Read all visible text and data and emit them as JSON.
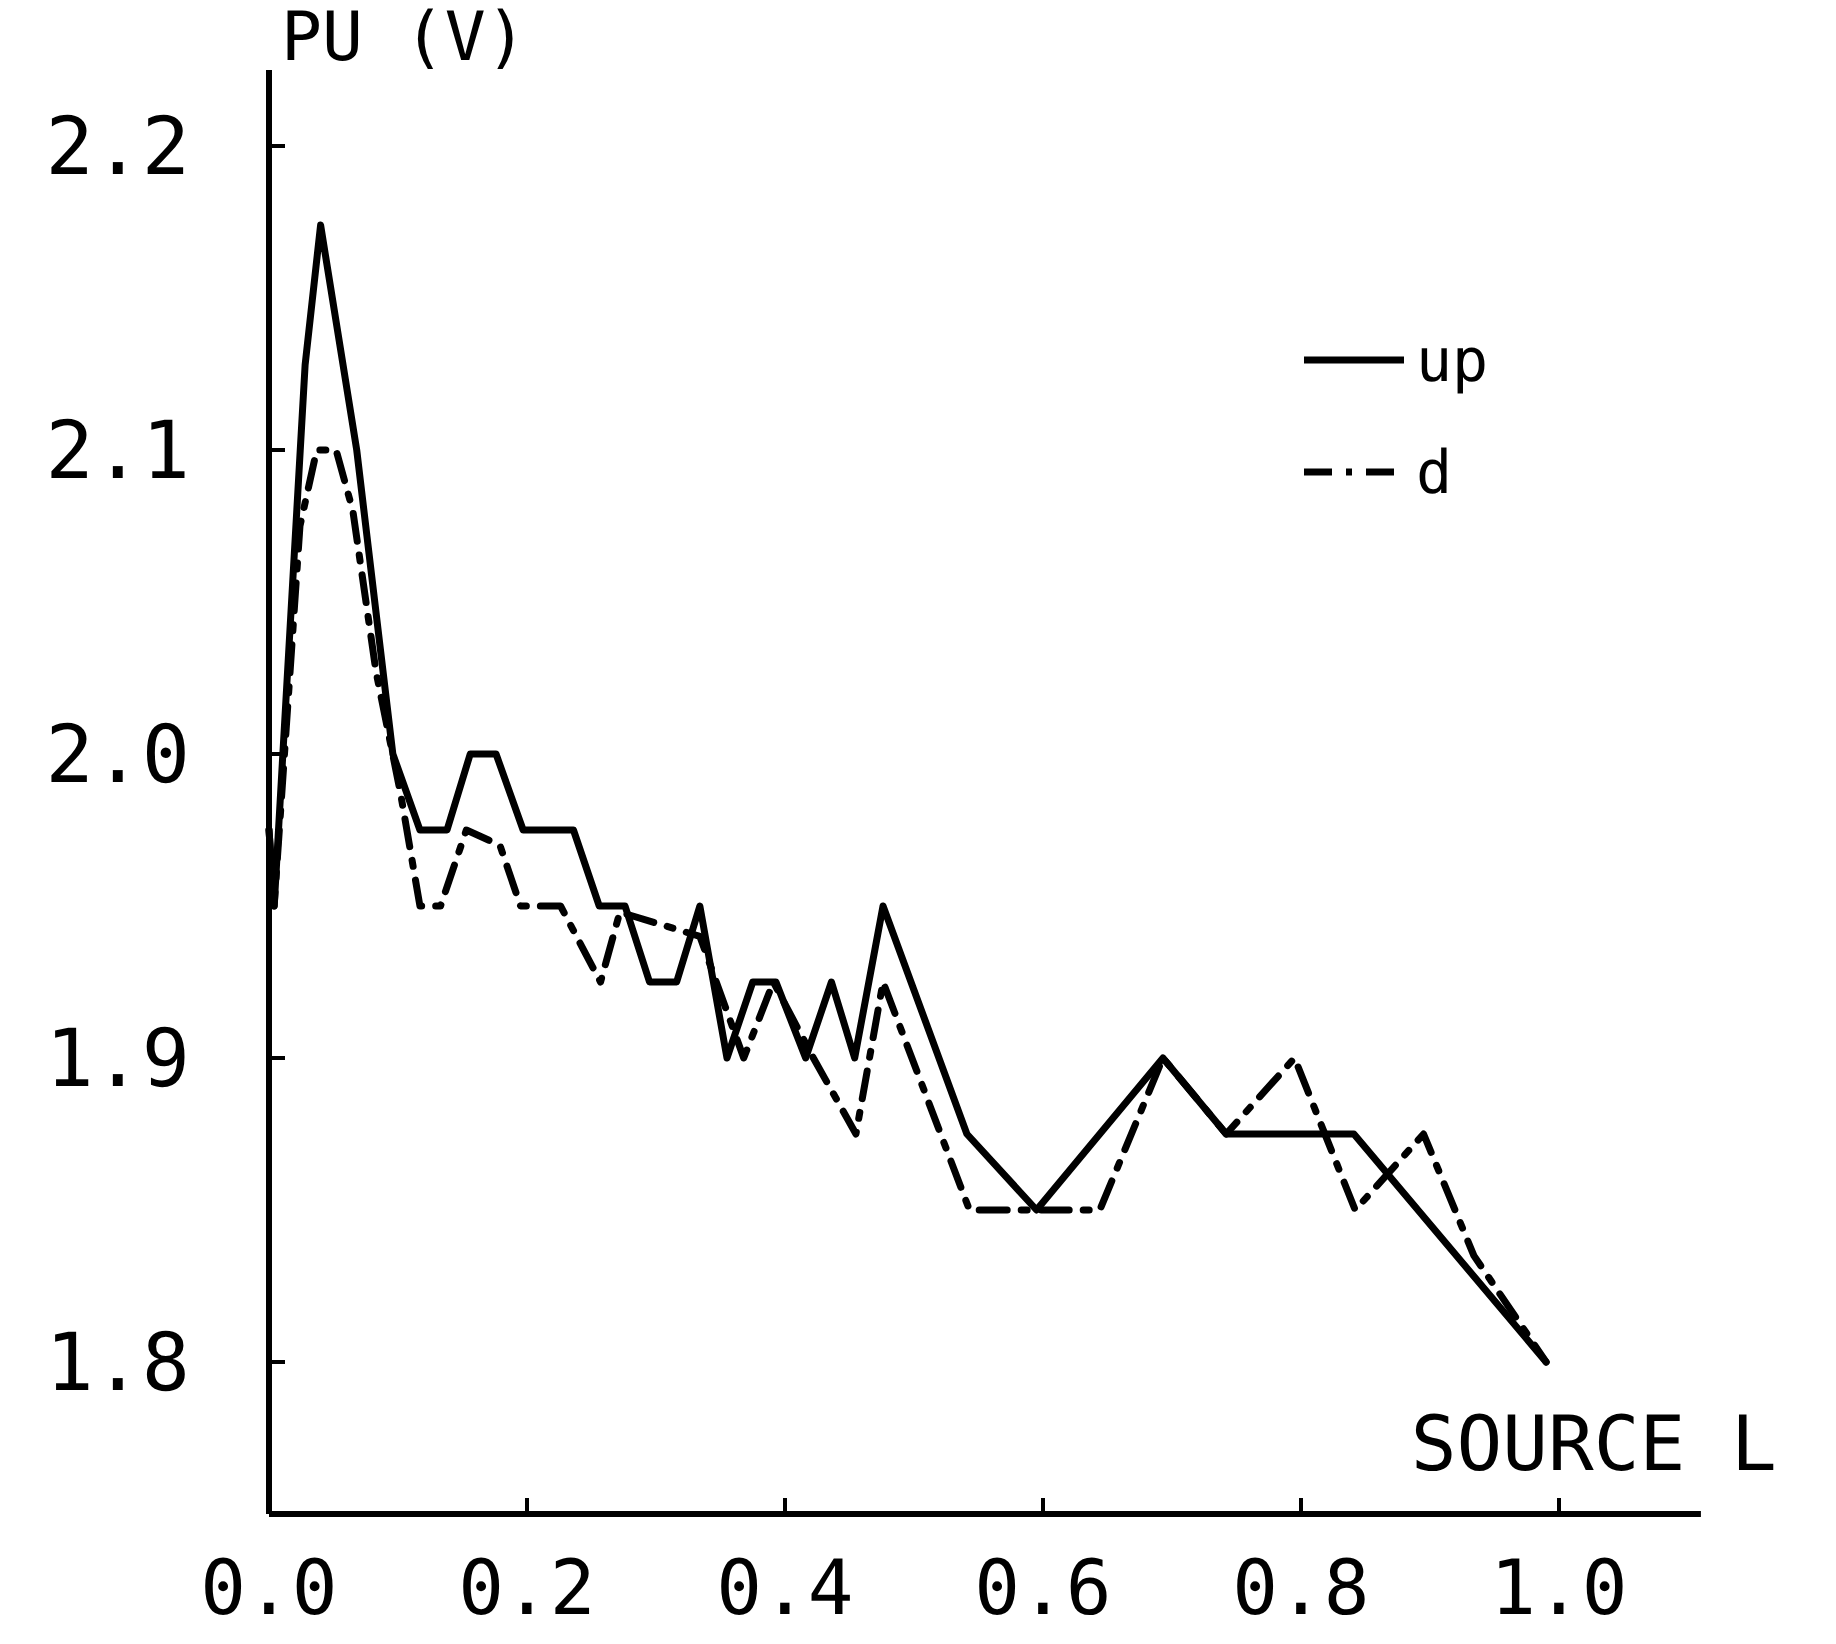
{
  "chart_data": {
    "type": "line",
    "xlabel": "SOURCE L",
    "ylabel": "PU (V)",
    "xlim": [
      0,
      1.11
    ],
    "ylim": [
      1.75,
      2.225
    ],
    "xticks": [
      {
        "value": 0,
        "label": "0.0"
      },
      {
        "value": 0.2,
        "label": "0.2"
      },
      {
        "value": 0.4,
        "label": "0.4"
      },
      {
        "value": 0.6,
        "label": "0.6"
      },
      {
        "value": 0.8,
        "label": "0.8"
      },
      {
        "value": 1,
        "label": "1.0"
      }
    ],
    "yticks": [
      {
        "value": 1.8,
        "label": "1.8"
      },
      {
        "value": 1.9,
        "label": "1.9"
      },
      {
        "value": 2,
        "label": "2.0"
      },
      {
        "value": 2.1,
        "label": "2.1"
      },
      {
        "value": 2.2,
        "label": "2.2"
      }
    ],
    "grid": false,
    "legend": "top right",
    "marker": "none",
    "series": [
      {
        "name": "up",
        "color": "#000000",
        "line_style": "solid",
        "x": [
          0,
          0.004,
          0.028,
          0.04,
          0.068,
          0.096,
          0.117,
          0.138,
          0.156,
          0.176,
          0.197,
          0.236,
          0.256,
          0.276,
          0.295,
          0.316,
          0.334,
          0.355,
          0.375,
          0.393,
          0.416,
          0.436,
          0.454,
          0.476,
          0.541,
          0.595,
          0.693,
          0.742,
          0.841,
          0.99
        ],
        "values": [
          1.975,
          1.95,
          2.128,
          2.174,
          2.1,
          2.0,
          1.975,
          1.975,
          2.0,
          2.0,
          1.975,
          1.975,
          1.95,
          1.95,
          1.925,
          1.925,
          1.95,
          1.9,
          1.925,
          1.925,
          1.9,
          1.925,
          1.9,
          1.95,
          1.875,
          1.85,
          1.9,
          1.875,
          1.875,
          1.8
        ]
      },
      {
        "name": "d",
        "color": "#000000",
        "line_style": "dashdot",
        "x": [
          0,
          0.004,
          0.024,
          0.037,
          0.052,
          0.065,
          0.083,
          0.102,
          0.117,
          0.133,
          0.153,
          0.179,
          0.195,
          0.226,
          0.257,
          0.272,
          0.334,
          0.368,
          0.391,
          0.422,
          0.455,
          0.476,
          0.543,
          0.644,
          0.693,
          0.742,
          0.795,
          0.842,
          0.895,
          0.934,
          0.99
        ],
        "values": [
          1.975,
          1.95,
          2.075,
          2.1,
          2.1,
          2.08,
          2.027,
          1.987,
          1.95,
          1.95,
          1.975,
          1.97,
          1.95,
          1.95,
          1.925,
          1.948,
          1.94,
          1.9,
          1.925,
          1.9,
          1.875,
          1.925,
          1.85,
          1.85,
          1.9,
          1.875,
          1.9,
          1.85,
          1.875,
          1.835,
          1.8
        ]
      }
    ]
  }
}
